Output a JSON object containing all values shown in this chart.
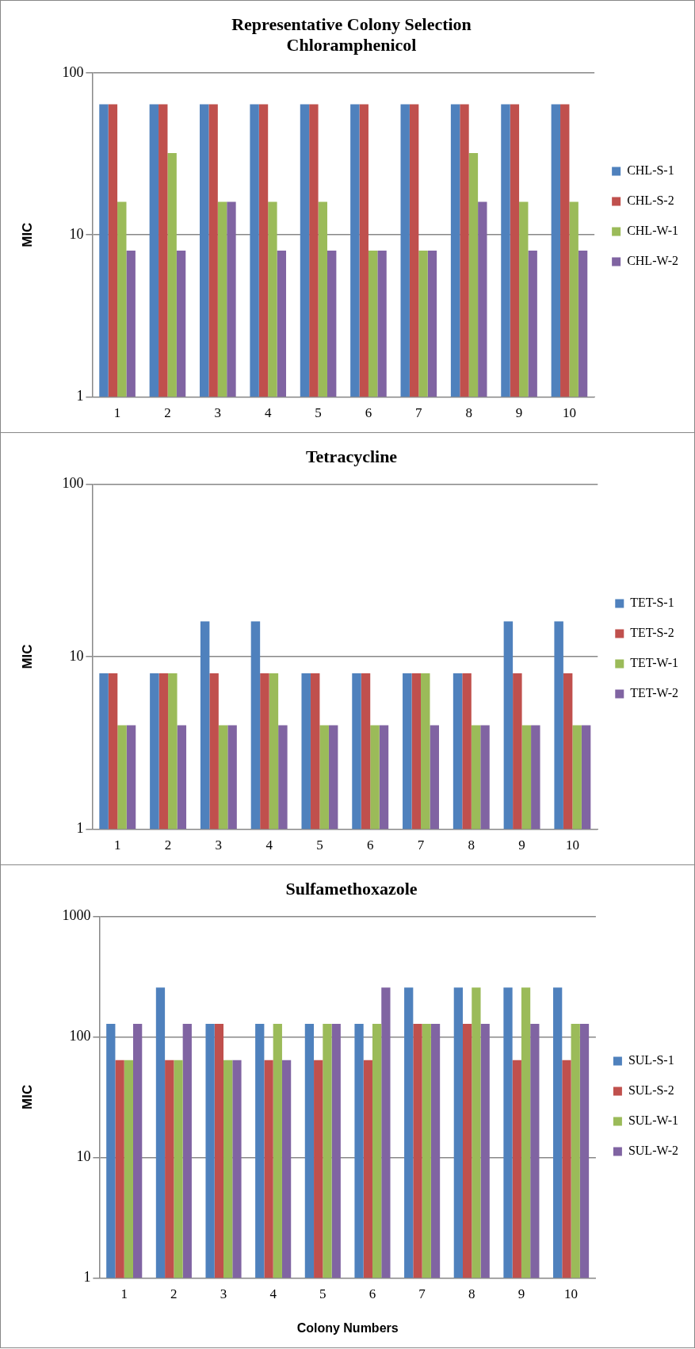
{
  "chart_data": [
    {
      "type": "bar",
      "title": "Representative Colony Selection\nChloramphenicol",
      "ylabel": "MIC",
      "categories": [
        "1",
        "2",
        "3",
        "4",
        "5",
        "6",
        "7",
        "8",
        "9",
        "10"
      ],
      "series": [
        {
          "name": "CHL-S-1",
          "color": "#4f81bd",
          "values": [
            64,
            64,
            64,
            64,
            64,
            64,
            64,
            64,
            64,
            64
          ]
        },
        {
          "name": "CHL-S-2",
          "color": "#c0504d",
          "values": [
            64,
            64,
            64,
            64,
            64,
            64,
            64,
            64,
            64,
            64
          ]
        },
        {
          "name": "CHL-W-1",
          "color": "#9bbb59",
          "values": [
            16,
            32,
            16,
            16,
            16,
            8,
            8,
            32,
            16,
            16
          ]
        },
        {
          "name": "CHL-W-2",
          "color": "#8064a2",
          "values": [
            8,
            8,
            16,
            8,
            8,
            8,
            8,
            16,
            8,
            8
          ]
        }
      ],
      "log": "y",
      "ylim": [
        1,
        100
      ],
      "yticks": [
        1,
        10,
        100
      ],
      "grid": "y",
      "legend": "right"
    },
    {
      "type": "bar",
      "title": "Tetracycline",
      "ylabel": "MIC",
      "categories": [
        "1",
        "2",
        "3",
        "4",
        "5",
        "6",
        "7",
        "8",
        "9",
        "10"
      ],
      "series": [
        {
          "name": "TET-S-1",
          "color": "#4f81bd",
          "values": [
            8,
            8,
            16,
            16,
            8,
            8,
            8,
            8,
            16,
            16
          ]
        },
        {
          "name": "TET-S-2",
          "color": "#c0504d",
          "values": [
            8,
            8,
            8,
            8,
            8,
            8,
            8,
            8,
            8,
            8
          ]
        },
        {
          "name": "TET-W-1",
          "color": "#9bbb59",
          "values": [
            4,
            8,
            4,
            8,
            4,
            4,
            8,
            4,
            4,
            4
          ]
        },
        {
          "name": "TET-W-2",
          "color": "#8064a2",
          "values": [
            4,
            4,
            4,
            4,
            4,
            4,
            4,
            4,
            4,
            4
          ]
        }
      ],
      "log": "y",
      "ylim": [
        1,
        100
      ],
      "yticks": [
        1,
        10,
        100
      ],
      "grid": "y",
      "legend": "right"
    },
    {
      "type": "bar",
      "title": "Sulfamethoxazole",
      "xlabel": "Colony Numbers",
      "ylabel": "MIC",
      "categories": [
        "1",
        "2",
        "3",
        "4",
        "5",
        "6",
        "7",
        "8",
        "9",
        "10"
      ],
      "series": [
        {
          "name": "SUL-S-1",
          "color": "#4f81bd",
          "values": [
            128,
            256,
            128,
            128,
            128,
            128,
            256,
            256,
            256,
            256
          ]
        },
        {
          "name": "SUL-S-2",
          "color": "#c0504d",
          "values": [
            64,
            64,
            128,
            64,
            64,
            64,
            128,
            128,
            64,
            64
          ]
        },
        {
          "name": "SUL-W-1",
          "color": "#9bbb59",
          "values": [
            64,
            64,
            64,
            128,
            128,
            128,
            128,
            256,
            256,
            128
          ]
        },
        {
          "name": "SUL-W-2",
          "color": "#8064a2",
          "values": [
            128,
            128,
            64,
            64,
            128,
            256,
            128,
            128,
            128,
            128
          ]
        }
      ],
      "log": "y",
      "ylim": [
        1,
        1000
      ],
      "yticks": [
        1,
        10,
        100,
        1000
      ],
      "grid": "y",
      "legend": "right"
    }
  ]
}
